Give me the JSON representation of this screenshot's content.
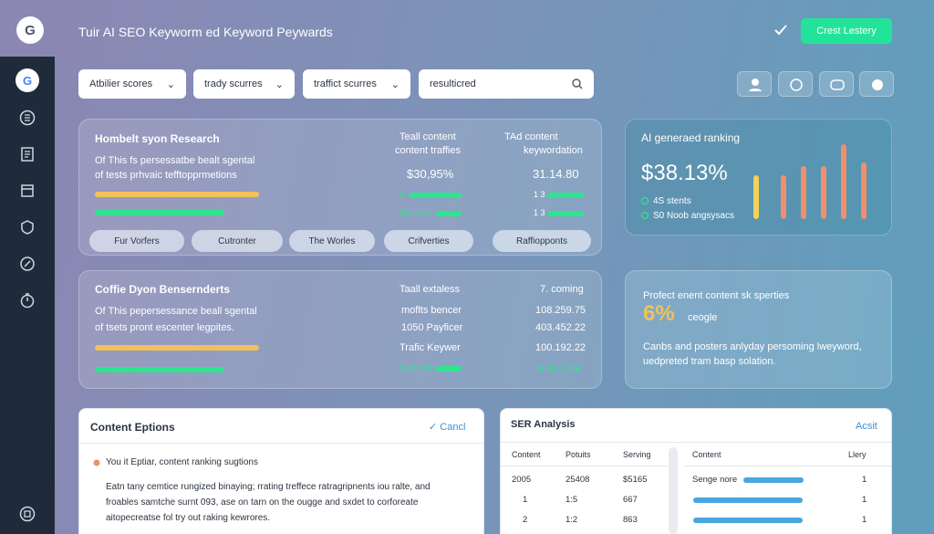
{
  "header": {
    "logo": "G",
    "title": "Tuir AI SEO Keyworm ed Keyword Peywards",
    "button": "Crest Lestery"
  },
  "sidebar": {
    "logo": "G"
  },
  "filters": [
    "Atbilier scores",
    "trady scurres",
    "traffict scurres"
  ],
  "search": "resulticred",
  "research_card": {
    "title": "Hombelt syon Research",
    "lines": [
      "Of This fs persessatbe bealt sgental",
      "of tests prhvaic tefftopprmetions"
    ],
    "col1": {
      "heading": [
        "Teall content",
        "content traffies"
      ],
      "value": "$30,95%",
      "rows": [
        "3",
        "Contrete"
      ]
    },
    "col2": {
      "heading": [
        "TAd content",
        "keywordation"
      ],
      "value": "31.14.80",
      "rows": [
        "1 3",
        "1 3"
      ]
    },
    "pills": [
      "Fur Vorfers",
      "Cutronter",
      "The Worles",
      "Crifverties",
      "Raffiopponts"
    ]
  },
  "second_card": {
    "title": "Coffie Dyon Bensernderts",
    "lines": [
      "Of This pepersessance beall sgental",
      "of tsets pront escenter legpites."
    ],
    "labels": [
      "Taall extaless",
      "moflts bencer",
      "1050 Payficer",
      "Trafic Keywer",
      "Contrete"
    ],
    "values": [
      "7. coming",
      "108.259.75",
      "403.452.22",
      "100.192.22",
      "9 4o 0.69"
    ]
  },
  "ai_card": {
    "title": "AI generaed ranking",
    "value": "$38.13%",
    "legend": [
      "4S stents",
      "S0 Noob angsysacs"
    ]
  },
  "profit_card": {
    "title": "Profect enent content sk sperties",
    "value": "6%",
    "value_note": "ceogle",
    "lines": [
      "Canbs and posters anlyday persoming lweyword,",
      "uedpreted tram basp solation."
    ]
  },
  "content_options": {
    "title": "Content Eptions",
    "action": "Cancl",
    "bullet": "You it Eptiar, content ranking sugtions",
    "lines": [
      "Eatn tany cemtice rungized binaying; rrating treffece ratragripnents iou ralte, and",
      "froables samtche surnt 093, ase on tarn on the ougge and sxdet to corforeate",
      "aitopecreatse fol try out raking kewrores."
    ]
  },
  "ser_analysis": {
    "title": "SER Analysis",
    "action": "Acsit",
    "table": {
      "headers": [
        "Content",
        "Potuits",
        "Serving"
      ],
      "rows": [
        [
          "2005",
          "25408",
          "$5165"
        ],
        [
          "1",
          "1:5",
          "667"
        ],
        [
          "2",
          "1:2",
          "863"
        ]
      ]
    },
    "table2": {
      "headers": [
        "Content",
        "Llery"
      ],
      "rows": [
        [
          "Senge nore",
          "1"
        ],
        [
          null,
          "1"
        ],
        [
          null,
          "1"
        ]
      ]
    }
  }
}
